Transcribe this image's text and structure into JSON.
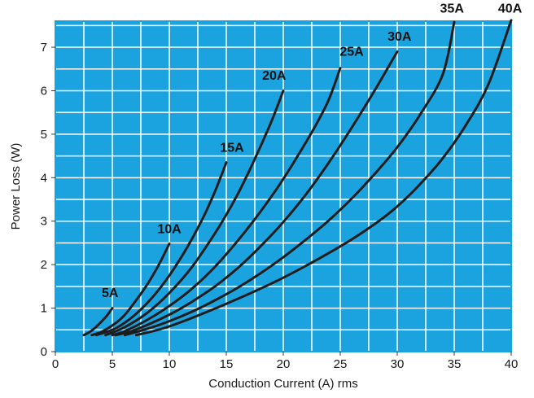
{
  "chart_data": {
    "type": "line",
    "title": "",
    "xlabel": "Conduction Current (A) rms",
    "ylabel": "Power Loss (W)",
    "xlim": [
      0,
      40
    ],
    "ylim": [
      0,
      7.6
    ],
    "x_ticks": [
      0,
      5,
      10,
      15,
      20,
      25,
      30,
      35,
      40
    ],
    "y_ticks": [
      0,
      1,
      2,
      3,
      4,
      5,
      6,
      7
    ],
    "x_grid_step": 2.5,
    "y_grid_step": 0.5,
    "grid": true,
    "legend": "none",
    "colors": {
      "plot_background": "#1ba3e0",
      "grid": "#ffffff",
      "curve": "#1c1c1c"
    },
    "series": [
      {
        "name": "5A",
        "x": [
          2.5,
          3,
          3.5,
          4,
          4.5,
          5
        ],
        "y": [
          0.38,
          0.45,
          0.55,
          0.68,
          0.82,
          1.0
        ],
        "label_at": [
          4.8,
          1.25
        ]
      },
      {
        "name": "10A",
        "x": [
          3.2,
          4,
          5,
          6,
          7,
          8,
          9,
          10
        ],
        "y": [
          0.38,
          0.45,
          0.6,
          0.82,
          1.15,
          1.52,
          1.96,
          2.48
        ],
        "label_at": [
          10,
          2.72
        ]
      },
      {
        "name": "15A",
        "x": [
          3.6,
          5,
          6,
          7,
          8,
          9,
          10,
          11,
          12,
          13,
          14,
          15
        ],
        "y": [
          0.38,
          0.5,
          0.65,
          0.85,
          1.1,
          1.4,
          1.75,
          2.15,
          2.6,
          3.1,
          3.68,
          4.35
        ],
        "label_at": [
          15.5,
          4.6
        ]
      },
      {
        "name": "20A",
        "x": [
          4.4,
          6,
          8,
          10,
          12,
          14,
          15,
          16,
          17,
          18,
          19,
          20
        ],
        "y": [
          0.38,
          0.55,
          0.88,
          1.35,
          1.95,
          2.72,
          3.15,
          3.62,
          4.15,
          4.72,
          5.32,
          6.0
        ],
        "label_at": [
          19.2,
          6.25
        ]
      },
      {
        "name": "25A",
        "x": [
          5,
          6,
          8,
          10,
          12,
          14,
          16,
          18,
          20,
          22,
          23,
          24,
          25
        ],
        "y": [
          0.38,
          0.46,
          0.72,
          1.05,
          1.45,
          1.95,
          2.55,
          3.22,
          3.97,
          4.82,
          5.28,
          5.8,
          6.52
        ],
        "label_at": [
          26,
          6.8
        ]
      },
      {
        "name": "30A",
        "x": [
          5.3,
          7,
          10,
          12,
          14,
          16,
          18,
          20,
          22,
          24,
          26,
          28,
          30
        ],
        "y": [
          0.38,
          0.5,
          0.85,
          1.15,
          1.5,
          1.92,
          2.42,
          2.98,
          3.62,
          4.35,
          5.15,
          6.0,
          6.9
        ],
        "label_at": [
          30.2,
          7.15
        ]
      },
      {
        "name": "35A",
        "x": [
          6.1,
          8,
          10,
          12,
          14,
          16,
          18,
          20,
          22,
          24,
          26,
          28,
          30,
          32,
          34,
          35
        ],
        "y": [
          0.38,
          0.52,
          0.7,
          0.92,
          1.18,
          1.47,
          1.8,
          2.17,
          2.58,
          3.02,
          3.52,
          4.08,
          4.7,
          5.45,
          6.38,
          7.58
        ],
        "label_at": [
          34.8,
          7.8
        ]
      },
      {
        "name": "40A",
        "x": [
          7.1,
          10,
          15,
          20,
          25,
          28,
          30,
          32,
          34,
          36,
          38,
          40
        ],
        "y": [
          0.38,
          0.58,
          1.1,
          1.7,
          2.42,
          2.93,
          3.34,
          3.85,
          4.45,
          5.2,
          6.15,
          7.62
        ],
        "label_at": [
          39.9,
          7.8
        ]
      }
    ]
  }
}
